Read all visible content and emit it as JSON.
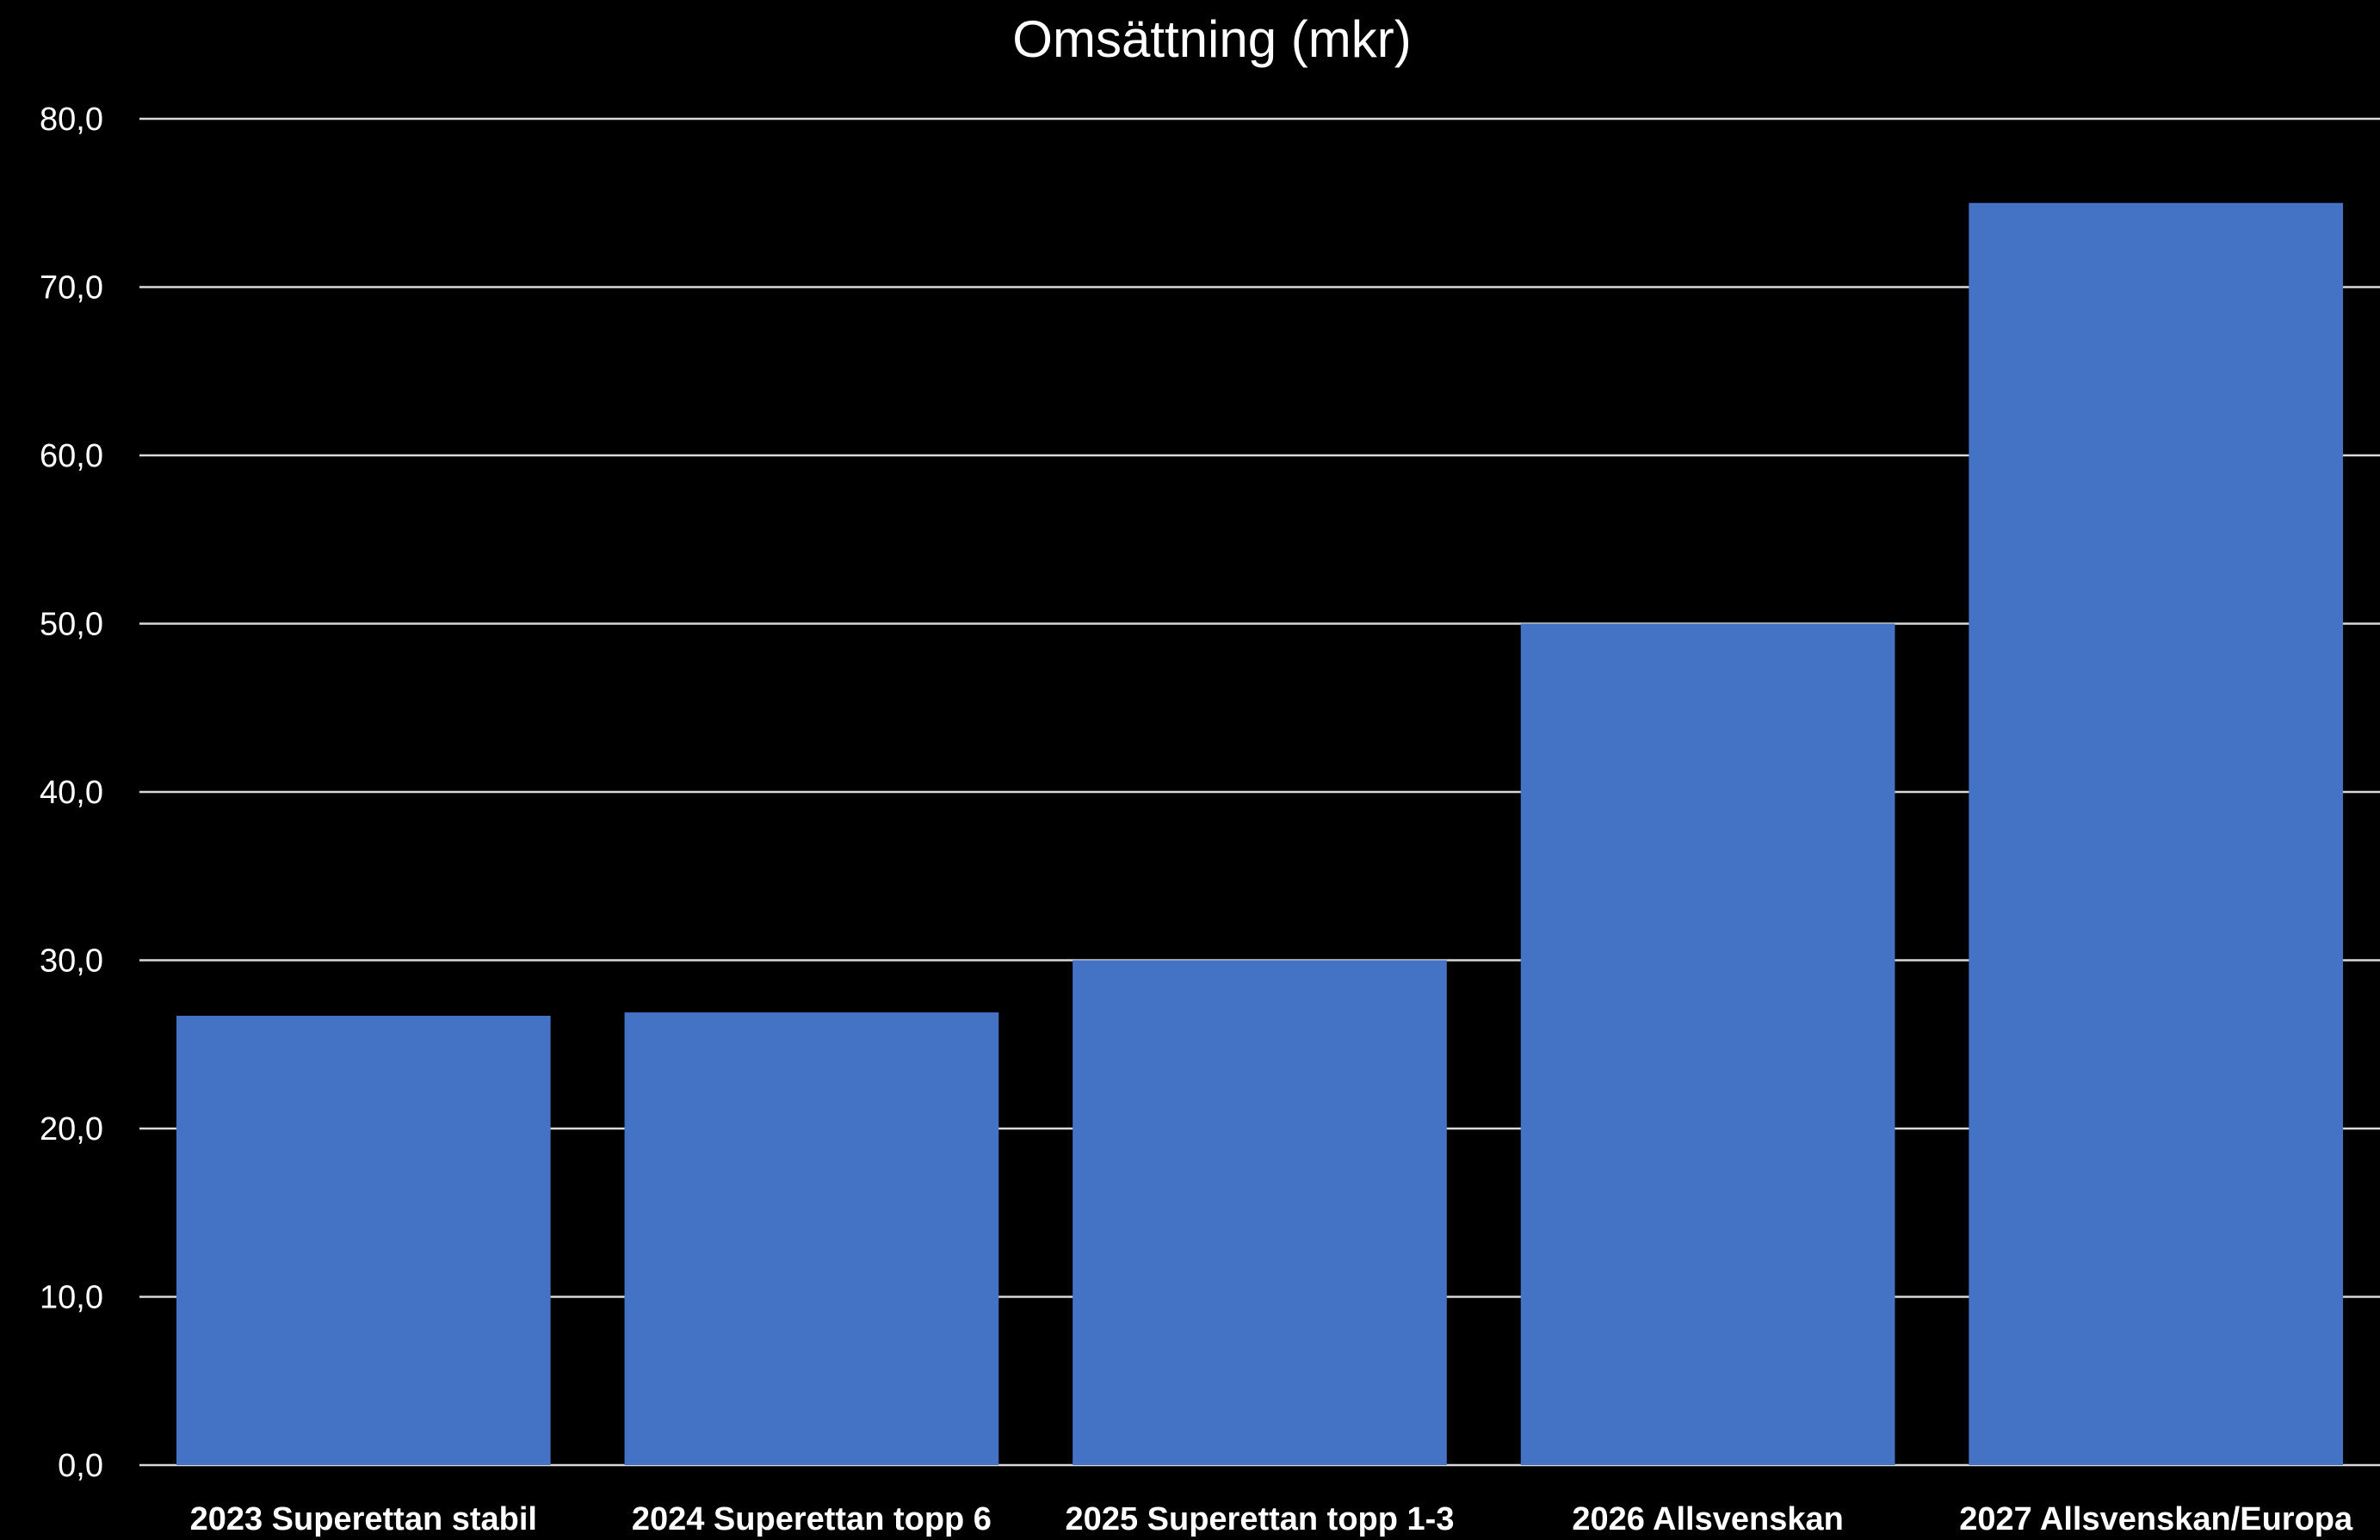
{
  "chart_data": {
    "type": "bar",
    "title": "Omsättning (mkr)",
    "xlabel": "",
    "ylabel": "",
    "categories": [
      "2023 Superettan stabil",
      "2024 Superettan topp 6",
      "2025 Superettan topp 1-3",
      "2026 Allsvenskan",
      "2027 Allsvenskan/Europa"
    ],
    "values": [
      26.7,
      26.9,
      30.0,
      50.0,
      75.0
    ],
    "ylim": [
      0,
      80
    ],
    "yticks": [
      "0,0",
      "10,0",
      "20,0",
      "30,0",
      "40,0",
      "50,0",
      "60,0",
      "70,0",
      "80,0"
    ],
    "grid": true,
    "legend": "none",
    "colors": {
      "background": "#000000",
      "bar": "#4472c4",
      "grid": "#d9d9d9",
      "text": "#ffffff"
    }
  }
}
